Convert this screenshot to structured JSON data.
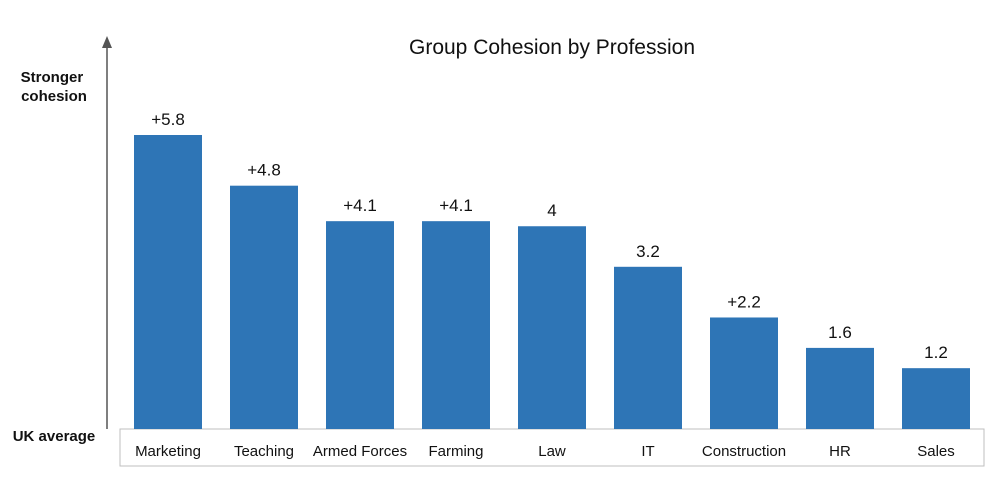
{
  "chart_data": {
    "type": "bar",
    "title": "Group Cohesion by Profession",
    "ylabel_top": [
      "Stronger",
      "cohesion"
    ],
    "ylabel_bottom": "UK average",
    "xlabel": "",
    "categories": [
      "Marketing",
      "Teaching",
      "Armed Forces",
      "Farming",
      "Law",
      "IT",
      "Construction",
      "HR",
      "Sales"
    ],
    "values": [
      5.8,
      4.8,
      4.1,
      4.1,
      4.0,
      3.2,
      2.2,
      1.6,
      1.2
    ],
    "value_labels": [
      "+5.8",
      "+4.8",
      "+4.1",
      "+4.1",
      "4",
      "3.2",
      "+2.2",
      "1.6",
      "1.2"
    ],
    "ylim": [
      0,
      5.8
    ],
    "grid": false,
    "legend": "none",
    "colors": {
      "bar": "#2E75B6",
      "axis": "#555555",
      "category_box": "#BFBFBF"
    }
  }
}
